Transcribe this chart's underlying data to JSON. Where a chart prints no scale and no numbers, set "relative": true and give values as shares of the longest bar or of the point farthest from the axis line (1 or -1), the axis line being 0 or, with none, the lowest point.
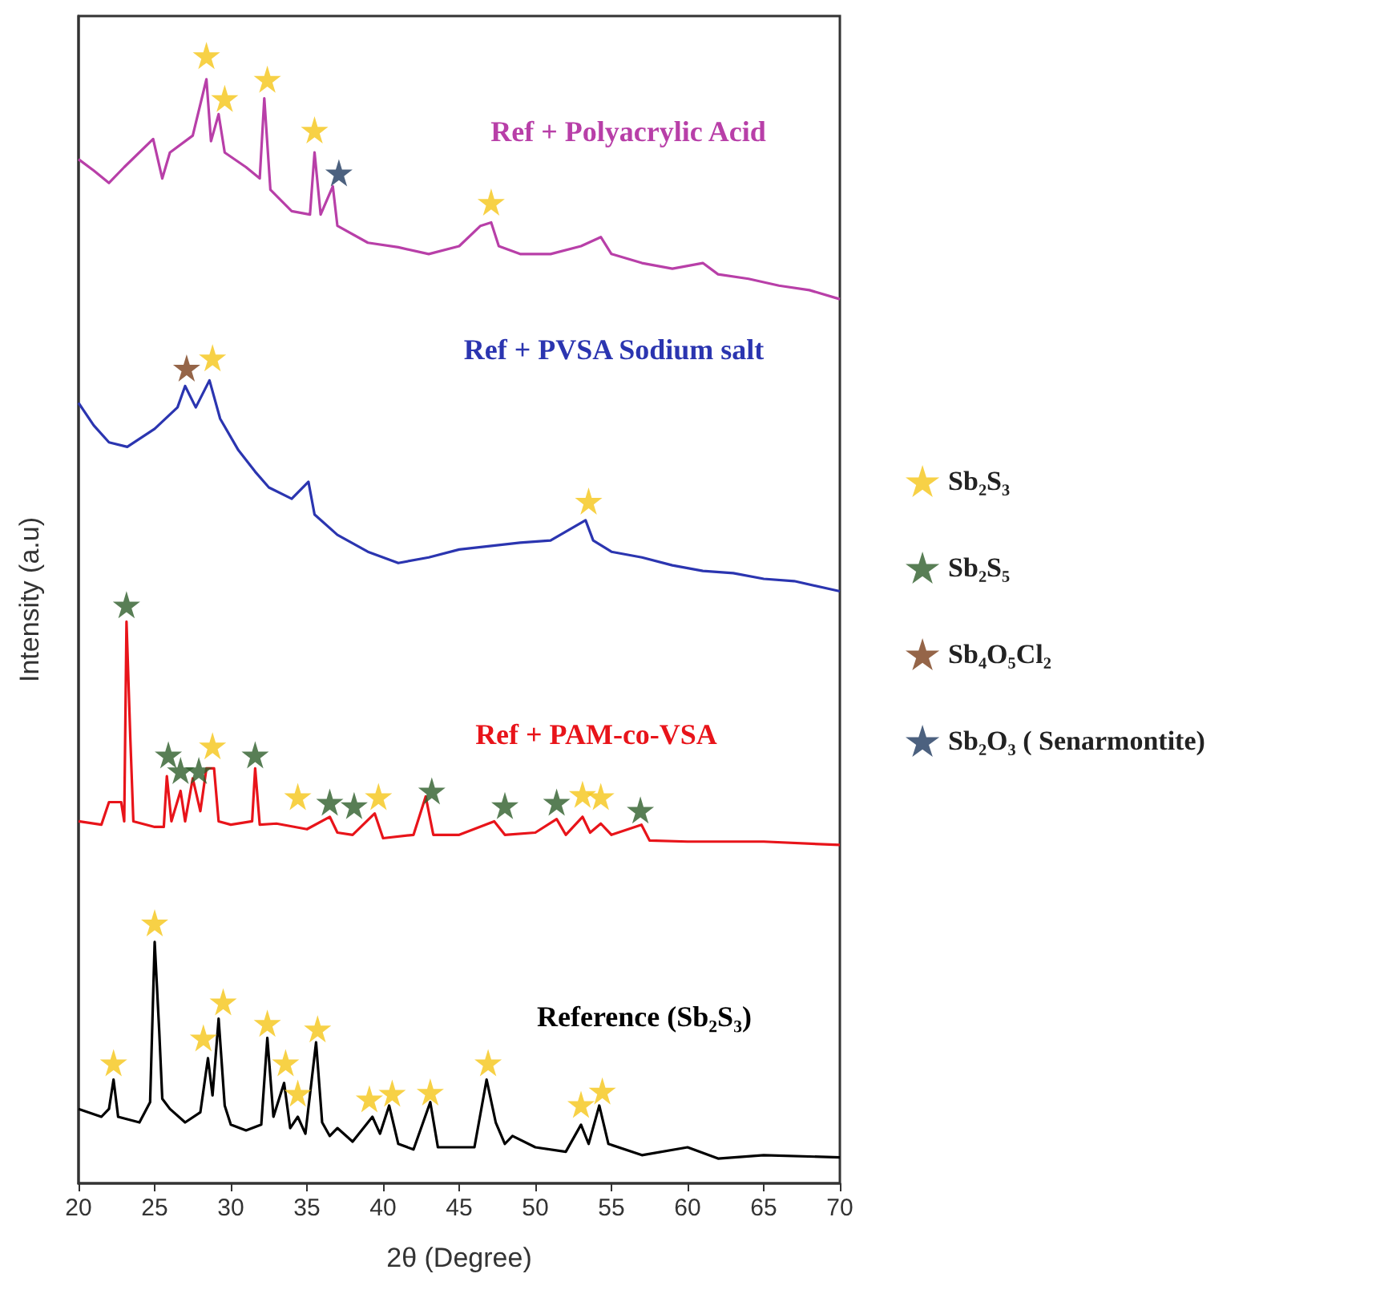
{
  "chart_data": {
    "type": "line",
    "relative": true,
    "xlabel": "2θ (Degree)",
    "ylabel": "Intensity (a.u)",
    "xlim": [
      20,
      70
    ],
    "xticks": [
      20,
      25,
      30,
      35,
      40,
      45,
      50,
      55,
      60,
      65,
      70
    ],
    "grid": false,
    "legend": "right",
    "series": [
      {
        "name": "Ref + Polyacrylic Acid",
        "type": "line",
        "marker": "none",
        "color": "#b83fa8",
        "x": [
          20,
          21,
          22,
          23,
          24.9,
          25.5,
          26,
          27.5,
          28.4,
          28.7,
          29.2,
          29.6,
          31,
          31.9,
          32.2,
          32.6,
          34,
          35.2,
          35.5,
          35.9,
          36.7,
          37,
          39,
          41,
          43,
          45,
          46.4,
          47.1,
          47.6,
          49,
          51,
          53,
          54.3,
          55,
          57,
          59,
          61,
          62,
          64,
          66,
          68,
          70
        ],
        "values": [
          0.908,
          0.898,
          0.887,
          0.901,
          0.926,
          0.891,
          0.914,
          0.929,
          0.979,
          0.924,
          0.948,
          0.914,
          0.901,
          0.891,
          0.962,
          0.881,
          0.862,
          0.859,
          0.914,
          0.859,
          0.884,
          0.849,
          0.834,
          0.83,
          0.824,
          0.831,
          0.849,
          0.852,
          0.831,
          0.824,
          0.824,
          0.831,
          0.839,
          0.824,
          0.816,
          0.811,
          0.816,
          0.806,
          0.802,
          0.796,
          0.792,
          0.784
        ]
      },
      {
        "name": "Ref + PVSA Sodium salt",
        "type": "line",
        "marker": "none",
        "color": "#2b35b0",
        "x": [
          20,
          21,
          22,
          23.2,
          25,
          26.5,
          27,
          27.7,
          28.6,
          29.3,
          30.5,
          31.6,
          32.5,
          34,
          35.1,
          35.5,
          37,
          39,
          41,
          43,
          45,
          47,
          49,
          51,
          53.3,
          53.8,
          55,
          57,
          59,
          61,
          63,
          65,
          67,
          70
        ],
        "values": [
          0.692,
          0.672,
          0.657,
          0.653,
          0.669,
          0.688,
          0.707,
          0.688,
          0.712,
          0.678,
          0.65,
          0.631,
          0.617,
          0.607,
          0.622,
          0.593,
          0.575,
          0.56,
          0.55,
          0.555,
          0.562,
          0.565,
          0.568,
          0.57,
          0.588,
          0.57,
          0.56,
          0.555,
          0.548,
          0.543,
          0.541,
          0.536,
          0.534,
          0.525
        ]
      },
      {
        "name": "Ref + PAM-co-VSA",
        "type": "line",
        "marker": "none",
        "color": "#e8141a",
        "x": [
          20,
          21.5,
          22,
          22.8,
          23,
          23.15,
          23.4,
          23.6,
          25,
          25.6,
          25.8,
          26.1,
          26.7,
          27,
          27.5,
          28,
          28.4,
          28.9,
          29.2,
          30,
          31.4,
          31.6,
          31.9,
          33,
          35,
          36.5,
          37,
          38,
          39.45,
          40,
          42,
          42.8,
          43.3,
          45,
          47.3,
          48,
          50,
          51.4,
          52,
          53.1,
          53.6,
          54.3,
          55,
          56.97,
          57.5,
          60,
          65,
          70
        ],
        "values": [
          0.321,
          0.318,
          0.338,
          0.338,
          0.321,
          0.498,
          0.395,
          0.321,
          0.316,
          0.316,
          0.361,
          0.321,
          0.348,
          0.321,
          0.359,
          0.33,
          0.368,
          0.368,
          0.321,
          0.318,
          0.321,
          0.368,
          0.318,
          0.319,
          0.314,
          0.325,
          0.311,
          0.309,
          0.328,
          0.306,
          0.309,
          0.343,
          0.309,
          0.309,
          0.321,
          0.309,
          0.311,
          0.323,
          0.309,
          0.325,
          0.311,
          0.319,
          0.309,
          0.318,
          0.304,
          0.303,
          0.303,
          0.3
        ]
      },
      {
        "name": "Reference (Sb₂S₃)",
        "type": "line",
        "marker": "none",
        "color": "#000000",
        "x": [
          20,
          21.5,
          22,
          22.3,
          22.6,
          24,
          24.7,
          25,
          25.3,
          25.5,
          26,
          27,
          28,
          28.5,
          28.8,
          29.2,
          29.6,
          30,
          31,
          32,
          32.4,
          32.8,
          33.5,
          33.9,
          34.4,
          34.9,
          35.6,
          36,
          36.5,
          37,
          38,
          39.3,
          39.8,
          40.4,
          41,
          42,
          43.1,
          43.6,
          46,
          46.8,
          47.4,
          48,
          48.5,
          50,
          52,
          53,
          53.5,
          54.2,
          54.8,
          57,
          60,
          62,
          65,
          70
        ],
        "values": [
          0.066,
          0.059,
          0.066,
          0.092,
          0.059,
          0.054,
          0.072,
          0.214,
          0.135,
          0.075,
          0.066,
          0.054,
          0.063,
          0.111,
          0.078,
          0.146,
          0.069,
          0.052,
          0.047,
          0.052,
          0.129,
          0.059,
          0.089,
          0.049,
          0.059,
          0.044,
          0.125,
          0.054,
          0.042,
          0.049,
          0.037,
          0.059,
          0.044,
          0.069,
          0.035,
          0.03,
          0.072,
          0.032,
          0.032,
          0.092,
          0.054,
          0.035,
          0.042,
          0.032,
          0.028,
          0.052,
          0.035,
          0.069,
          0.035,
          0.025,
          0.032,
          0.022,
          0.025,
          0.023
        ]
      },
      {
        "name": "Sb₂S₃",
        "type": "scatter",
        "marker": "star",
        "color": "#f5c518",
        "x": [
          22.3,
          25,
          28.2,
          29.5,
          32.4,
          33.6,
          34.4,
          35.7,
          39.1,
          40.6,
          43.1,
          46.9,
          53,
          54.4,
          28.8,
          34.4,
          39.7,
          53.1,
          54.3,
          28.8,
          53.5,
          28.4,
          29.6,
          32.4,
          35.5,
          47.1
        ],
        "values": [
          0.107,
          0.231,
          0.129,
          0.161,
          0.142,
          0.107,
          0.08,
          0.137,
          0.075,
          0.08,
          0.081,
          0.107,
          0.07,
          0.082,
          0.388,
          0.343,
          0.343,
          0.345,
          0.343,
          0.732,
          0.605,
          1,
          0.962,
          0.979,
          0.934,
          0.87
        ]
      },
      {
        "name": "Sb₂S₅",
        "type": "scatter",
        "marker": "star",
        "color": "#2e5e2a",
        "x": [
          23.15,
          25.9,
          26.7,
          27.9,
          31.6,
          36.5,
          38.1,
          43.2,
          48,
          51.4,
          56.9
        ],
        "values": [
          0.513,
          0.38,
          0.366,
          0.366,
          0.38,
          0.338,
          0.335,
          0.348,
          0.335,
          0.338,
          0.331
        ]
      },
      {
        "name": "Sb₄O₅Cl₂",
        "type": "scatter",
        "marker": "star",
        "color": "#7a3e1a",
        "x": [
          27.1
        ],
        "values": [
          0.723
        ]
      },
      {
        "name": "Sb₂O₃ ( Senarmontite)",
        "type": "scatter",
        "marker": "star",
        "color": "#1f3a5f",
        "x": [
          37.1
        ],
        "values": [
          0.896
        ]
      }
    ]
  }
}
